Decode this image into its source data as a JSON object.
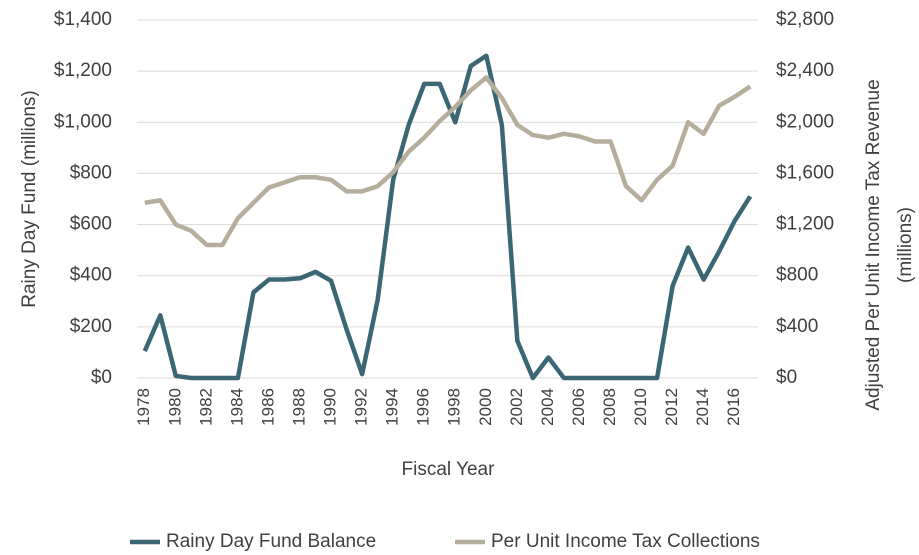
{
  "chart_data": {
    "type": "line",
    "x_label": "Fiscal Year",
    "y_label": "Rainy Day Fund (millions)",
    "y2_label": [
      "Adjusted Per Unit Income Tax Revenue",
      "(millions)"
    ],
    "categories": [
      "1978",
      null,
      "1980",
      null,
      "1982",
      null,
      "1984",
      null,
      "1986",
      null,
      "1988",
      null,
      "1990",
      null,
      "1992",
      null,
      "1994",
      null,
      "1996",
      null,
      "1998",
      null,
      "2000",
      null,
      "2002",
      null,
      "2004",
      null,
      "2006",
      null,
      "2008",
      null,
      "2010",
      null,
      "2012",
      null,
      "2014",
      null,
      "2016",
      null
    ],
    "series": [
      {
        "name": "Rainy Day Fund Balance",
        "color": "#3b6673",
        "values": [
          105,
          245,
          8,
          0,
          0,
          0,
          0,
          335,
          385,
          385,
          390,
          415,
          380,
          190,
          15,
          305,
          775,
          990,
          1150,
          1150,
          1000,
          1220,
          1260,
          990,
          145,
          0,
          80,
          0,
          0,
          0,
          0,
          0,
          0,
          0,
          360,
          510,
          385,
          495,
          615,
          710
        ]
      },
      {
        "name": "Per Unit Income Tax Collections",
        "color": "#b5ae9c",
        "axis": "y2",
        "values": [
          1370,
          1390,
          1200,
          1150,
          1040,
          1040,
          1250,
          1370,
          1490,
          1530,
          1570,
          1570,
          1550,
          1460,
          1460,
          1500,
          1610,
          1770,
          1880,
          2010,
          2120,
          2250,
          2350,
          2190,
          1980,
          1900,
          1880,
          1910,
          1890,
          1850,
          1850,
          1500,
          1390,
          1550,
          1660,
          2000,
          1910,
          2130,
          2200,
          2280
        ]
      }
    ],
    "ylim": [
      0,
      1400
    ],
    "yticks": [
      {
        "value": 0,
        "label": "$0"
      },
      {
        "value": 200,
        "label": "$200"
      },
      {
        "value": 400,
        "label": "$400"
      },
      {
        "value": 600,
        "label": "$600"
      },
      {
        "value": 800,
        "label": "$800"
      },
      {
        "value": 1000,
        "label": "$1,000"
      },
      {
        "value": 1200,
        "label": "$1,200"
      },
      {
        "value": 1400,
        "label": "$1,400"
      }
    ],
    "y2lim": [
      0,
      2800
    ],
    "y2ticks": [
      {
        "value": 0,
        "label": "$0"
      },
      {
        "value": 400,
        "label": "$400"
      },
      {
        "value": 800,
        "label": "$800"
      },
      {
        "value": 1200,
        "label": "$1,200"
      },
      {
        "value": 1600,
        "label": "$1,600"
      },
      {
        "value": 2000,
        "label": "$2,000"
      },
      {
        "value": 2400,
        "label": "$2,400"
      },
      {
        "value": 2800,
        "label": "$2,800"
      }
    ],
    "grid": true,
    "legend": "bottom"
  }
}
